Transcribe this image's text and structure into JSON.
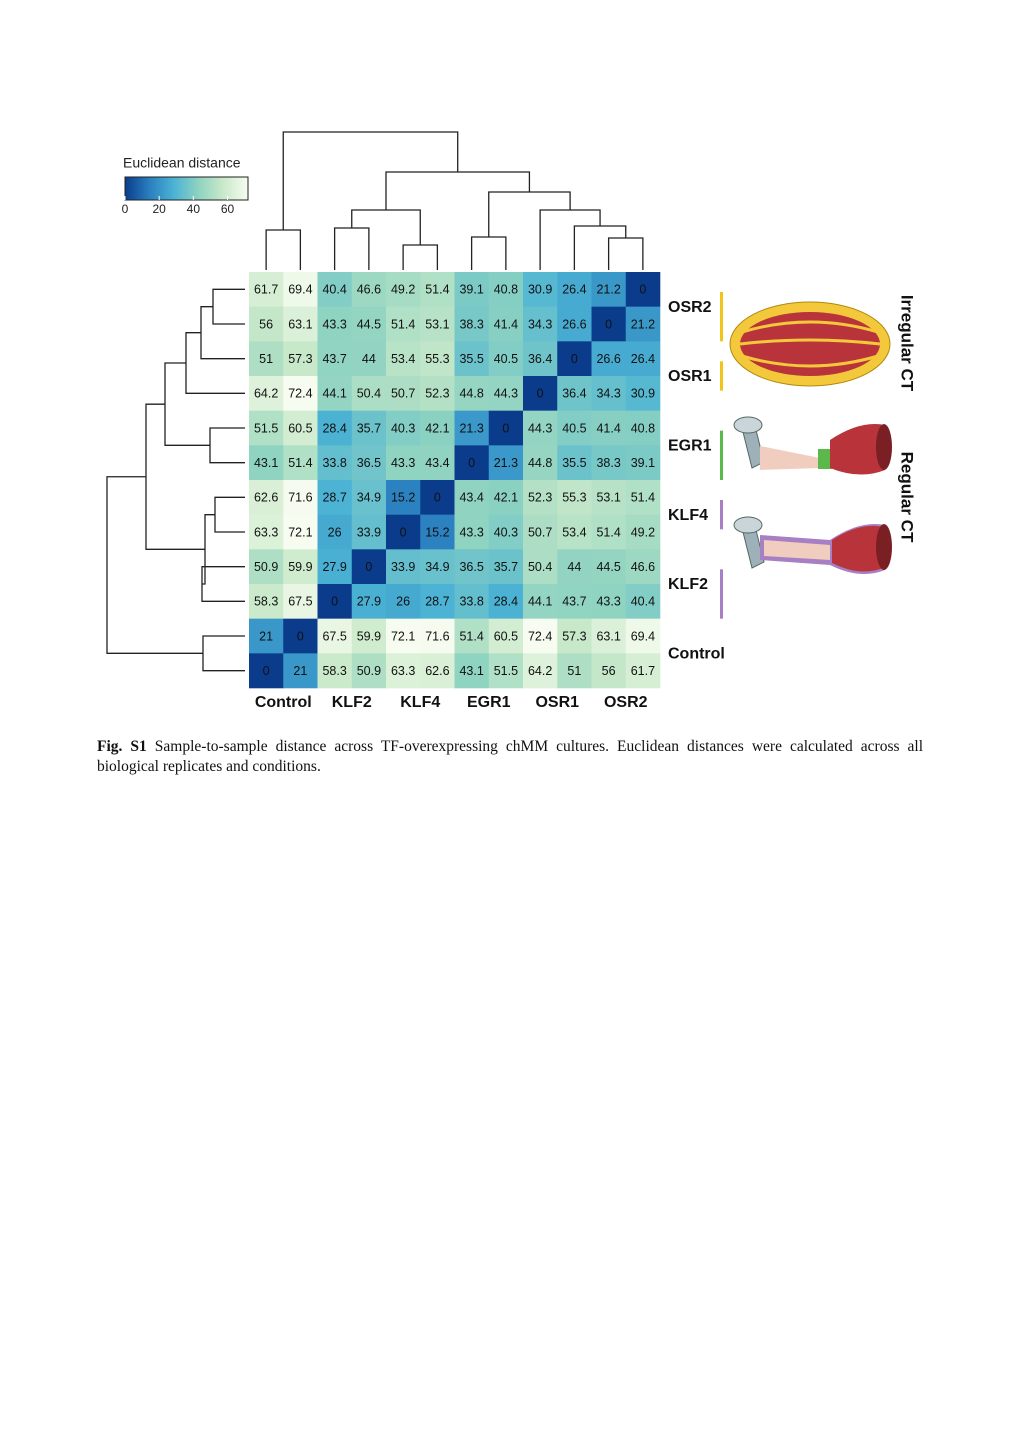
{
  "chart_data": {
    "type": "heatmap",
    "legend_title": "Euclidean distance",
    "colors": [
      "#0b3c8c",
      "#2a7fc0",
      "#4cb3d4",
      "#8fd3c1",
      "#c9e9c9",
      "#f7fcf0"
    ],
    "zlim": [
      0,
      72
    ],
    "zticks": [
      0,
      20,
      40,
      60
    ],
    "column_groups": [
      "Control",
      "KLF2",
      "KLF4",
      "EGR1",
      "OSR1",
      "OSR2"
    ],
    "row_groups": [
      "OSR2",
      "OSR1",
      "EGR1",
      "KLF4",
      "KLF2",
      "Control"
    ],
    "row_group_colors": [
      "#f0c419",
      "#f0c419",
      "#5bb84a",
      "#a77fc4",
      "#a77fc4",
      null
    ],
    "side_labels": [
      "Irregular CT",
      "Regular CT"
    ],
    "values": [
      [
        61.7,
        69.4,
        40.4,
        46.6,
        49.2,
        51.4,
        39.1,
        40.8,
        30.9,
        26.4,
        21.2,
        0
      ],
      [
        56,
        63.1,
        43.3,
        44.5,
        51.4,
        53.1,
        38.3,
        41.4,
        34.3,
        26.6,
        0,
        21.2
      ],
      [
        51,
        57.3,
        43.7,
        44,
        53.4,
        55.3,
        35.5,
        40.5,
        36.4,
        0,
        26.6,
        26.4
      ],
      [
        64.2,
        72.4,
        44.1,
        50.4,
        50.7,
        52.3,
        44.8,
        44.3,
        0,
        36.4,
        34.3,
        30.9
      ],
      [
        51.5,
        60.5,
        28.4,
        35.7,
        40.3,
        42.1,
        21.3,
        0,
        44.3,
        40.5,
        41.4,
        40.8
      ],
      [
        43.1,
        51.4,
        33.8,
        36.5,
        43.3,
        43.4,
        0,
        21.3,
        44.8,
        35.5,
        38.3,
        39.1
      ],
      [
        62.6,
        71.6,
        28.7,
        34.9,
        15.2,
        0,
        43.4,
        42.1,
        52.3,
        55.3,
        53.1,
        51.4
      ],
      [
        63.3,
        72.1,
        26,
        33.9,
        0,
        15.2,
        43.3,
        40.3,
        50.7,
        53.4,
        51.4,
        49.2
      ],
      [
        50.9,
        59.9,
        27.9,
        0,
        33.9,
        34.9,
        36.5,
        35.7,
        50.4,
        44,
        44.5,
        46.6
      ],
      [
        58.3,
        67.5,
        0,
        27.9,
        26,
        28.7,
        33.8,
        28.4,
        44.1,
        43.7,
        43.3,
        40.4
      ],
      [
        21,
        0,
        67.5,
        59.9,
        72.1,
        71.6,
        51.4,
        60.5,
        72.4,
        57.3,
        63.1,
        69.4
      ],
      [
        0,
        21,
        58.3,
        50.9,
        63.3,
        62.6,
        43.1,
        51.5,
        64.2,
        51,
        56,
        61.7
      ]
    ]
  },
  "caption": {
    "label": "Fig. S1",
    "text": "Sample-to-sample distance across TF-overexpressing chMM cultures. Euclidean distances were calculated across all biological replicates and conditions."
  }
}
